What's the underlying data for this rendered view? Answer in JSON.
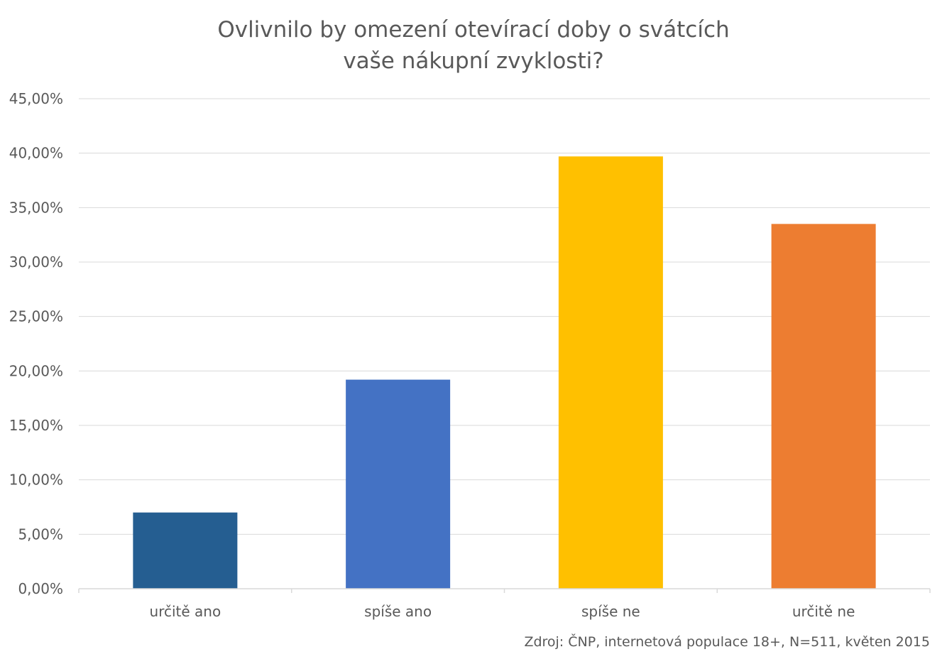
{
  "chart_data": {
    "type": "bar",
    "title_lines": [
      "Ovlivnilo by omezení otevírací doby o svátcích",
      "vaše nákupní zvyklosti?"
    ],
    "categories": [
      "určitě ano",
      "spíše ano",
      "spíše ne",
      "určitě ne"
    ],
    "values": [
      7.0,
      19.2,
      39.7,
      33.5
    ],
    "colors": [
      "#255E91",
      "#4472C4",
      "#FFC000",
      "#ED7D31"
    ],
    "ylim": [
      0,
      45
    ],
    "yticks": [
      0,
      5,
      10,
      15,
      20,
      25,
      30,
      35,
      40,
      45
    ],
    "ytick_labels": [
      "0,00%",
      "5,00%",
      "10,00%",
      "15,00%",
      "20,00%",
      "25,00%",
      "30,00%",
      "35,00%",
      "40,00%",
      "45,00%"
    ],
    "grid": true,
    "xlabel": "",
    "ylabel": ""
  },
  "source": "Zdroj: ČNP, internetová populace 18+, N=511, květen 2015"
}
